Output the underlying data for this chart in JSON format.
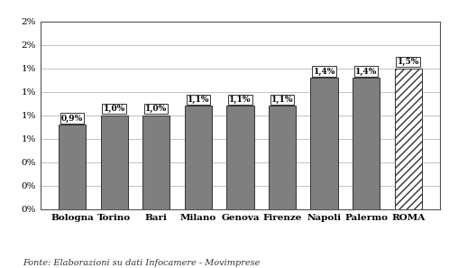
{
  "categories": [
    "Bologna",
    "Torino",
    "Bari",
    "Milano",
    "Genova",
    "Firenze",
    "Napoli",
    "Palermo",
    "ROMA"
  ],
  "values": [
    0.9,
    1.0,
    1.0,
    1.1,
    1.1,
    1.1,
    1.4,
    1.4,
    1.5
  ],
  "labels": [
    "0,9%",
    "1,0%",
    "1,0%",
    "1,1%",
    "1,1%",
    "1,1%",
    "1,4%",
    "1,4%",
    "1,5%"
  ],
  "bar_color": "#7f7f7f",
  "hatch_bar_index": 8,
  "hatch_pattern": "////",
  "ylim": [
    0,
    2.0
  ],
  "yticks": [
    0.0,
    0.25,
    0.5,
    0.75,
    1.0,
    1.25,
    1.5,
    1.75,
    2.0
  ],
  "ytick_labels": [
    "0%",
    "0%",
    "0%",
    "1%",
    "1%",
    "1%",
    "1%",
    "2%",
    "2%"
  ],
  "footnote": "Fonte: Elaborazioni su dati Infocamere - Movimprese",
  "background_color": "#ffffff",
  "bar_edge_color": "#333333",
  "label_fontsize": 6.5,
  "tick_fontsize": 7.5,
  "footnote_fontsize": 7,
  "grid_color": "#aaaaaa",
  "frame_color": "#555555"
}
